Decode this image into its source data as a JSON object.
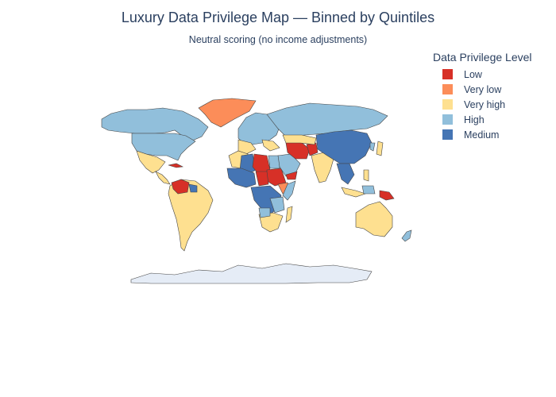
{
  "title": "Luxury Data Privilege Map — Binned by Quintiles",
  "subtitle": "Neutral scoring (no income adjustments)",
  "legend": {
    "title": "Data Privilege Level",
    "items": [
      {
        "label": "Low",
        "color": "#d73027"
      },
      {
        "label": "Very low",
        "color": "#fc8d59"
      },
      {
        "label": "Very high",
        "color": "#fee090"
      },
      {
        "label": "High",
        "color": "#91bfdb"
      },
      {
        "label": "Medium",
        "color": "#4575b4"
      }
    ]
  },
  "colors": {
    "land_nodata": "#e5ecf6",
    "border": "#444444"
  }
}
